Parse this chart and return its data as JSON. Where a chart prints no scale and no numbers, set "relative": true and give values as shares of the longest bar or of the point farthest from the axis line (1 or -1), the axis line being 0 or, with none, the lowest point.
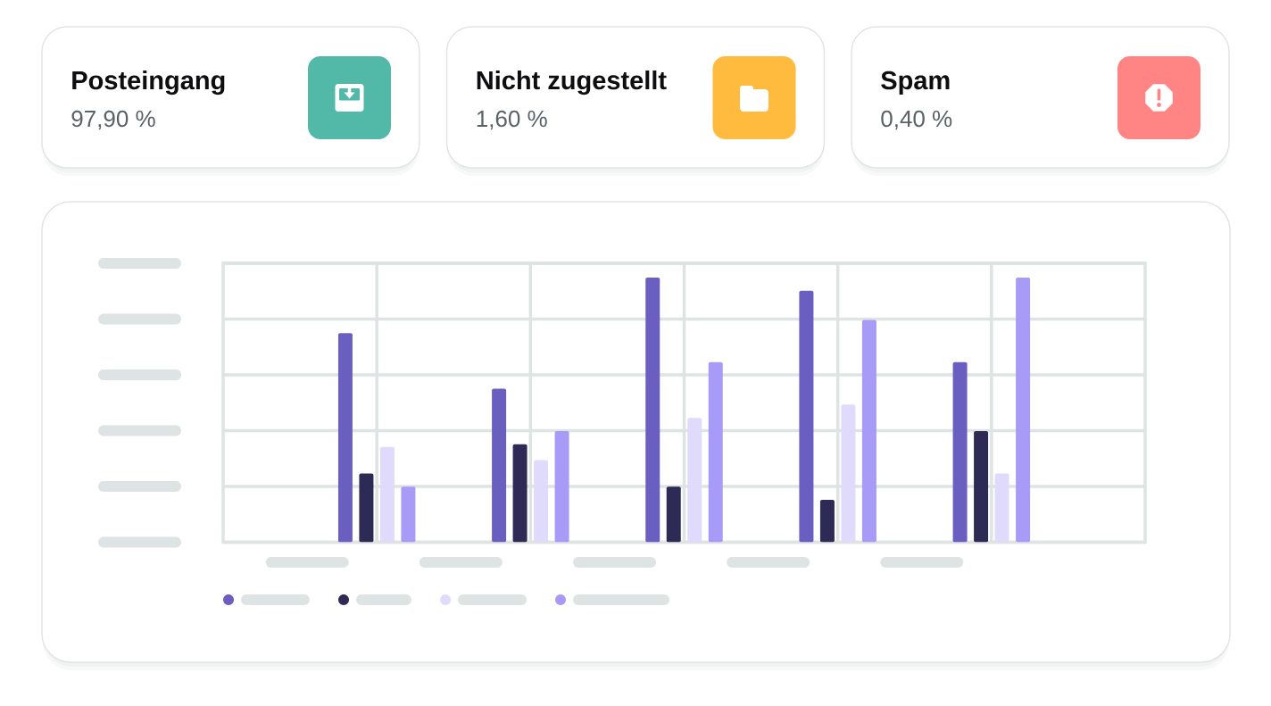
{
  "chart_data": [
    {
      "type": "other",
      "title": "Posteingang",
      "subtitle": "97,90 %"
    },
    {
      "type": "other",
      "title": "Nicht zugestellt",
      "subtitle": "1,60 %"
    },
    {
      "type": "other",
      "title": "Spam",
      "subtitle": "0,40 %"
    },
    {
      "type": "bar",
      "relative": true,
      "categories": [
        null,
        null,
        null,
        null,
        null
      ],
      "series": [
        {
          "color": "#6a5fc1",
          "values": [
            0.79,
            0.58,
            1,
            0.95,
            0.68
          ]
        },
        {
          "color": "#2d2a55",
          "values": [
            0.26,
            0.37,
            0.21,
            0.16,
            0.42
          ]
        },
        {
          "color": "#e0dbfc",
          "values": [
            0.36,
            0.31,
            0.47,
            0.52,
            0.26
          ]
        },
        {
          "color": "#a89bf7",
          "values": [
            0.21,
            0.42,
            0.68,
            0.84,
            1
          ]
        }
      ],
      "grid": true
    }
  ]
}
